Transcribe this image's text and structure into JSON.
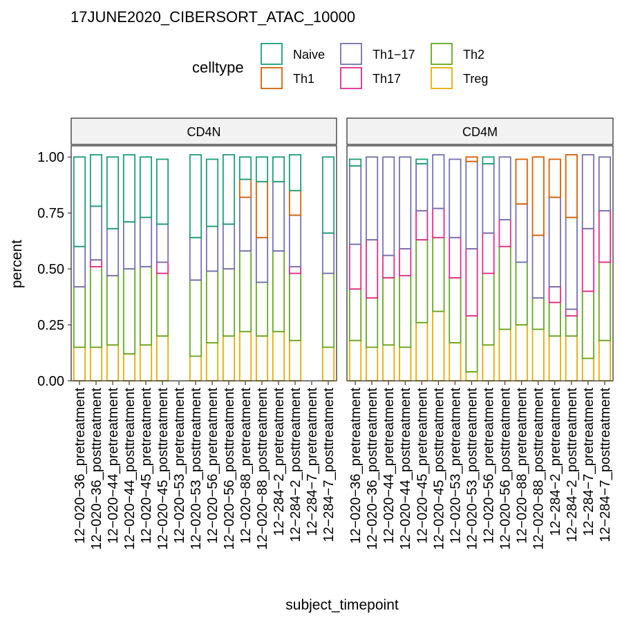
{
  "chart_data": {
    "type": "bar",
    "stacked": true,
    "title": "17JUNE2020_CIBERSORT_ATAC_10000",
    "xlabel": "subject_timepoint",
    "ylabel": "percent",
    "ylim": [
      0,
      1.05
    ],
    "yticks": [
      0,
      0.25,
      0.5,
      0.75,
      1.0
    ],
    "ytick_labels": [
      "0.00",
      "0.25",
      "0.50",
      "0.75",
      "1.00"
    ],
    "grid": false,
    "legend": {
      "title": "celltype",
      "placement": "top",
      "entries": [
        {
          "name": "Naive",
          "color": "#1b9e77"
        },
        {
          "name": "Th1",
          "color": "#d95f02"
        },
        {
          "name": "Th1−17",
          "color": "#7570b3"
        },
        {
          "name": "Th17",
          "color": "#e7298a"
        },
        {
          "name": "Th2",
          "color": "#66a61e"
        },
        {
          "name": "Treg",
          "color": "#e6ab02"
        }
      ]
    },
    "stack_order": [
      "Treg",
      "Th2",
      "Th17",
      "Th1−17",
      "Th1",
      "Naive"
    ],
    "categories": [
      "12−020−36_pretreatment",
      "12−020−36_posttreatment",
      "12−020−44_pretreatment",
      "12−020−44_posttreatment",
      "12−020−45_pretreatment",
      "12−020−45_posttreatment",
      "12−020−53_pretreatment",
      "12−020−53_posttreatment",
      "12−020−56_pretreatment",
      "12−020−56_posttreatment",
      "12−020−88_pretreatment",
      "12−020−88_posttreatment",
      "12−284−2_pretreatment",
      "12−284−2_posttreatment",
      "12−284−7_pretreatment",
      "12−284−7_posttreatment"
    ],
    "panels": [
      {
        "name": "CD4N",
        "bars": [
          {
            "Treg": 0.15,
            "Th2": 0.27,
            "Th17": 0.0,
            "Th1−17": 0.18,
            "Th1": 0.0,
            "Naive": 0.4
          },
          {
            "Treg": 0.15,
            "Th2": 0.36,
            "Th17": 0.03,
            "Th1−17": 0.24,
            "Th1": 0.0,
            "Naive": 0.23
          },
          {
            "Treg": 0.16,
            "Th2": 0.31,
            "Th17": 0.0,
            "Th1−17": 0.21,
            "Th1": 0.0,
            "Naive": 0.32
          },
          {
            "Treg": 0.12,
            "Th2": 0.38,
            "Th17": 0.0,
            "Th1−17": 0.21,
            "Th1": 0.0,
            "Naive": 0.3
          },
          {
            "Treg": 0.16,
            "Th2": 0.35,
            "Th17": 0.0,
            "Th1−17": 0.22,
            "Th1": 0.0,
            "Naive": 0.27
          },
          {
            "Treg": 0.2,
            "Th2": 0.28,
            "Th17": 0.05,
            "Th1−17": 0.17,
            "Th1": 0.0,
            "Naive": 0.29
          },
          null,
          {
            "Treg": 0.11,
            "Th2": 0.34,
            "Th17": 0.0,
            "Th1−17": 0.19,
            "Th1": 0.0,
            "Naive": 0.37
          },
          {
            "Treg": 0.17,
            "Th2": 0.32,
            "Th17": 0.0,
            "Th1−17": 0.2,
            "Th1": 0.0,
            "Naive": 0.3
          },
          {
            "Treg": 0.2,
            "Th2": 0.3,
            "Th17": 0.0,
            "Th1−17": 0.2,
            "Th1": 0.0,
            "Naive": 0.31
          },
          {
            "Treg": 0.22,
            "Th2": 0.36,
            "Th17": 0.0,
            "Th1−17": 0.24,
            "Th1": 0.08,
            "Naive": 0.1
          },
          {
            "Treg": 0.2,
            "Th2": 0.24,
            "Th17": 0.0,
            "Th1−17": 0.2,
            "Th1": 0.25,
            "Naive": 0.11
          },
          {
            "Treg": 0.22,
            "Th2": 0.36,
            "Th17": 0.0,
            "Th1−17": 0.31,
            "Th1": 0.0,
            "Naive": 0.11
          },
          {
            "Treg": 0.18,
            "Th2": 0.3,
            "Th17": 0.03,
            "Th1−17": 0.23,
            "Th1": 0.11,
            "Naive": 0.16
          },
          null,
          {
            "Treg": 0.15,
            "Th2": 0.33,
            "Th17": 0.0,
            "Th1−17": 0.18,
            "Th1": 0.0,
            "Naive": 0.34
          }
        ]
      },
      {
        "name": "CD4M",
        "bars": [
          {
            "Treg": 0.18,
            "Th2": 0.23,
            "Th17": 0.2,
            "Th1−17": 0.35,
            "Th1": 0.0,
            "Naive": 0.03
          },
          {
            "Treg": 0.15,
            "Th2": 0.22,
            "Th17": 0.26,
            "Th1−17": 0.37,
            "Th1": 0.0,
            "Naive": 0.0
          },
          {
            "Treg": 0.16,
            "Th2": 0.3,
            "Th17": 0.1,
            "Th1−17": 0.44,
            "Th1": 0.0,
            "Naive": 0.0
          },
          {
            "Treg": 0.15,
            "Th2": 0.32,
            "Th17": 0.12,
            "Th1−17": 0.41,
            "Th1": 0.0,
            "Naive": 0.0
          },
          {
            "Treg": 0.26,
            "Th2": 0.37,
            "Th17": 0.13,
            "Th1−17": 0.21,
            "Th1": 0.0,
            "Naive": 0.02
          },
          {
            "Treg": 0.31,
            "Th2": 0.33,
            "Th17": 0.13,
            "Th1−17": 0.24,
            "Th1": 0.0,
            "Naive": 0.0
          },
          {
            "Treg": 0.17,
            "Th2": 0.29,
            "Th17": 0.18,
            "Th1−17": 0.35,
            "Th1": 0.0,
            "Naive": 0.0
          },
          {
            "Treg": 0.04,
            "Th2": 0.25,
            "Th17": 0.3,
            "Th1−17": 0.39,
            "Th1": 0.02,
            "Naive": 0.0
          },
          {
            "Treg": 0.16,
            "Th2": 0.32,
            "Th17": 0.18,
            "Th1−17": 0.31,
            "Th1": 0.0,
            "Naive": 0.03
          },
          {
            "Treg": 0.23,
            "Th2": 0.37,
            "Th17": 0.12,
            "Th1−17": 0.28,
            "Th1": 0.0,
            "Naive": 0.0
          },
          {
            "Treg": 0.25,
            "Th2": 0.28,
            "Th17": 0.0,
            "Th1−17": 0.26,
            "Th1": 0.2,
            "Naive": 0.0
          },
          {
            "Treg": 0.23,
            "Th2": 0.14,
            "Th17": 0.0,
            "Th1−17": 0.28,
            "Th1": 0.35,
            "Naive": 0.0
          },
          {
            "Treg": 0.2,
            "Th2": 0.15,
            "Th17": 0.07,
            "Th1−17": 0.4,
            "Th1": 0.17,
            "Naive": 0.0
          },
          {
            "Treg": 0.2,
            "Th2": 0.09,
            "Th17": 0.03,
            "Th1−17": 0.41,
            "Th1": 0.28,
            "Naive": 0.0
          },
          {
            "Treg": 0.1,
            "Th2": 0.3,
            "Th17": 0.28,
            "Th1−17": 0.33,
            "Th1": 0.0,
            "Naive": 0.0
          },
          {
            "Treg": 0.18,
            "Th2": 0.35,
            "Th17": 0.23,
            "Th1−17": 0.24,
            "Th1": 0.0,
            "Naive": 0.0
          }
        ]
      }
    ]
  }
}
